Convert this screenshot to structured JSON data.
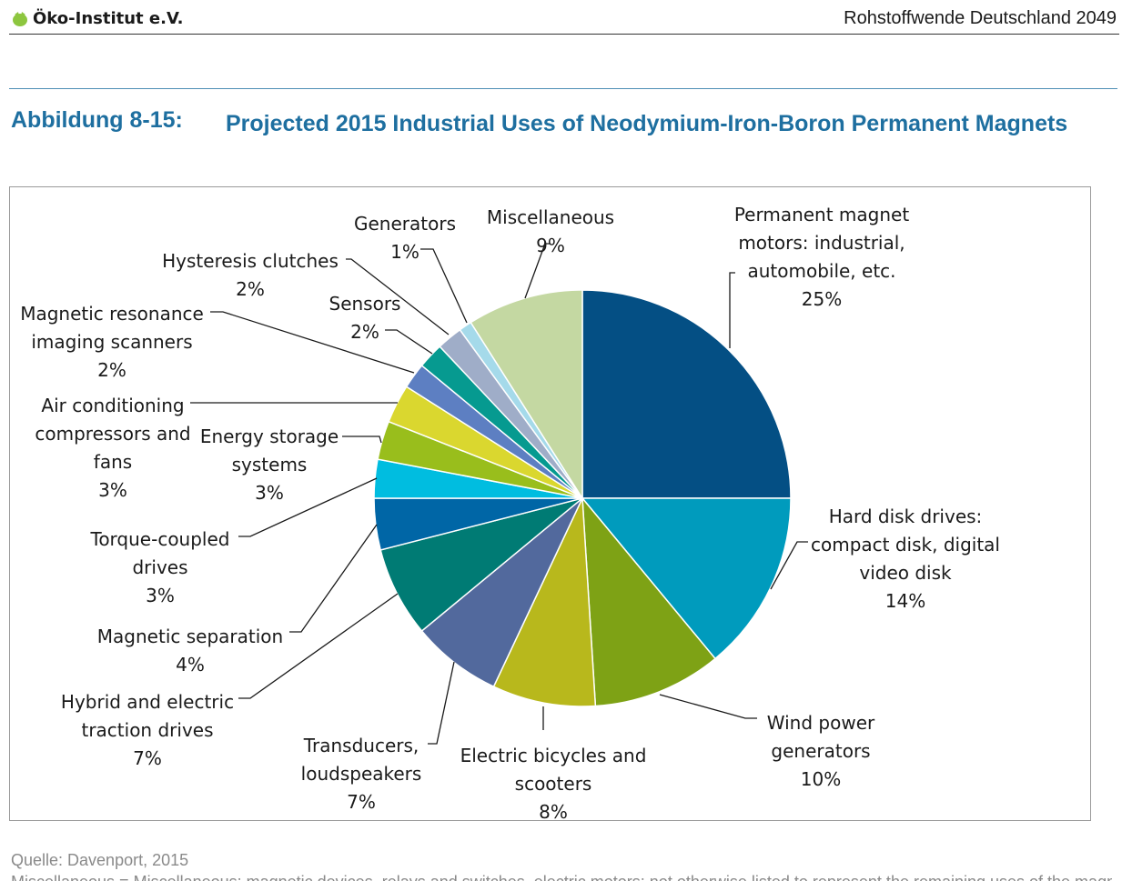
{
  "header": {
    "logo_text": "Öko-Institut e.V.",
    "document_title": "Rohstoffwende Deutschland 2049"
  },
  "figure": {
    "label": "Abbildung 8-15:",
    "title": "Projected 2015 Industrial Uses of Neodymium-Iron-Boron Permanent Magnets"
  },
  "footer": {
    "source": "Quelle: Davenport, 2015",
    "cut_text": "Miscellaneous = Miscellaneous: magnetic devices, relays and switches, electric motors; not otherwise listed to represent the remaining uses of the magnets"
  },
  "chart_data": {
    "type": "pie",
    "title": "Projected 2015 Industrial Uses of Neodymium-Iron-Boron Permanent Magnets",
    "start": "12 o'clock, clockwise",
    "slices": [
      {
        "label_lines": [
          "Permanent magnet",
          "motors: industrial,",
          "automobile, etc."
        ],
        "pct_text": "25%",
        "value": 25,
        "color": "#044f84"
      },
      {
        "label_lines": [
          "Hard disk drives:",
          "compact disk, digital",
          "video disk"
        ],
        "pct_text": "14%",
        "value": 14,
        "color": "#009bbd"
      },
      {
        "label_lines": [
          "Wind power",
          "generators"
        ],
        "pct_text": "10%",
        "value": 10,
        "color": "#7ea215"
      },
      {
        "label_lines": [
          "Electric bicycles and",
          "scooters"
        ],
        "pct_text": "8%",
        "value": 8,
        "color": "#b8b81c"
      },
      {
        "label_lines": [
          "Transducers,",
          "loudspeakers"
        ],
        "pct_text": "7%",
        "value": 7,
        "color": "#52699d"
      },
      {
        "label_lines": [
          "Hybrid and electric",
          "traction drives"
        ],
        "pct_text": "7%",
        "value": 7,
        "color": "#007b74"
      },
      {
        "label_lines": [
          "Magnetic separation"
        ],
        "pct_text": "4%",
        "value": 4,
        "color": "#0066a6"
      },
      {
        "label_lines": [
          "Torque-coupled",
          "drives"
        ],
        "pct_text": "3%",
        "value": 3,
        "color": "#00bde0"
      },
      {
        "label_lines": [
          "Energy storage",
          "systems"
        ],
        "pct_text": "3%",
        "value": 3,
        "color": "#99be1c"
      },
      {
        "label_lines": [
          "Air conditioning",
          "compressors and",
          "fans"
        ],
        "pct_text": "3%",
        "value": 3,
        "color": "#dad72f"
      },
      {
        "label_lines": [
          "Magnetic resonance",
          "imaging scanners"
        ],
        "pct_text": "2%",
        "value": 2,
        "color": "#5d7fc2"
      },
      {
        "label_lines": [
          "Sensors"
        ],
        "pct_text": "2%",
        "value": 2,
        "color": "#069a90"
      },
      {
        "label_lines": [
          "Hysteresis clutches"
        ],
        "pct_text": "2%",
        "value": 2,
        "color": "#9fadc8"
      },
      {
        "label_lines": [
          "Generators"
        ],
        "pct_text": "1%",
        "value": 1,
        "color": "#a5daea"
      },
      {
        "label_lines": [
          "Miscellaneous"
        ],
        "pct_text": "9%",
        "value": 9,
        "color": "#c4d8a2"
      }
    ]
  }
}
